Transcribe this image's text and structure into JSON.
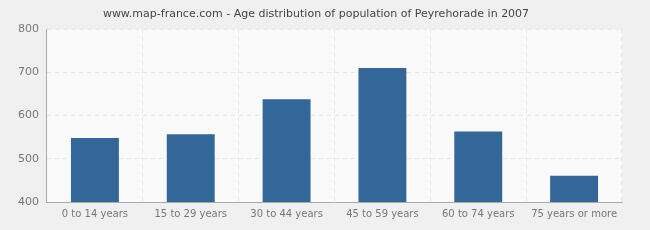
{
  "chart_data": {
    "type": "bar",
    "title": "www.map-france.com - Age distribution of population of Peyrehorade in 2007",
    "categories": [
      "0 to 14 years",
      "15 to 29 years",
      "30 to 44 years",
      "45 to 59 years",
      "60 to 74 years",
      "75 years or more"
    ],
    "values": [
      548,
      557,
      638,
      710,
      563,
      461
    ],
    "color": "#336699",
    "ylim": [
      400,
      800
    ],
    "yticks": [
      400,
      500,
      600,
      700,
      800
    ],
    "grid": true
  }
}
